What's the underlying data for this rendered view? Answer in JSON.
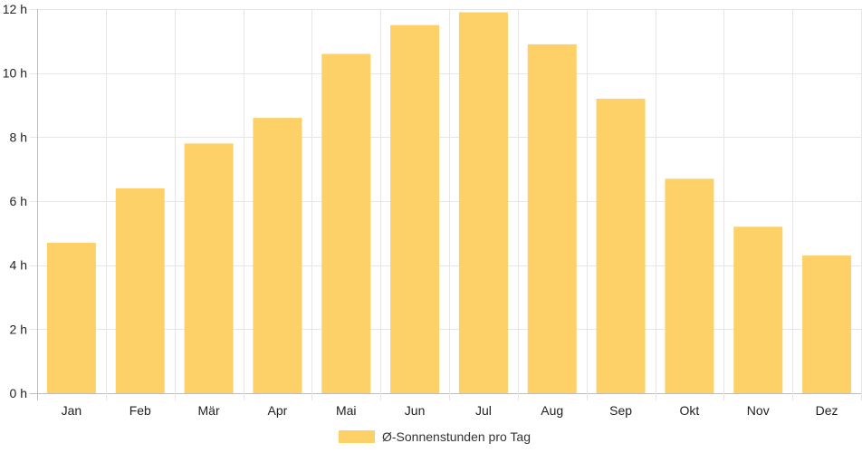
{
  "chart_data": {
    "type": "bar",
    "categories": [
      "Jan",
      "Feb",
      "Mär",
      "Apr",
      "Mai",
      "Jun",
      "Jul",
      "Aug",
      "Sep",
      "Okt",
      "Nov",
      "Dez"
    ],
    "series": [
      {
        "name": "Ø-Sonnenstunden pro Tag",
        "values": [
          4.7,
          6.4,
          7.8,
          8.6,
          10.6,
          11.5,
          11.9,
          10.9,
          9.2,
          6.7,
          5.2,
          4.3
        ],
        "color": "#fdd068"
      }
    ],
    "yticks": [
      0,
      2,
      4,
      6,
      8,
      10,
      12
    ],
    "ytick_suffix": " h",
    "ylim": [
      0,
      12
    ],
    "grid": true,
    "legend": "bottom-center",
    "title": "",
    "xlabel": "",
    "ylabel": ""
  }
}
